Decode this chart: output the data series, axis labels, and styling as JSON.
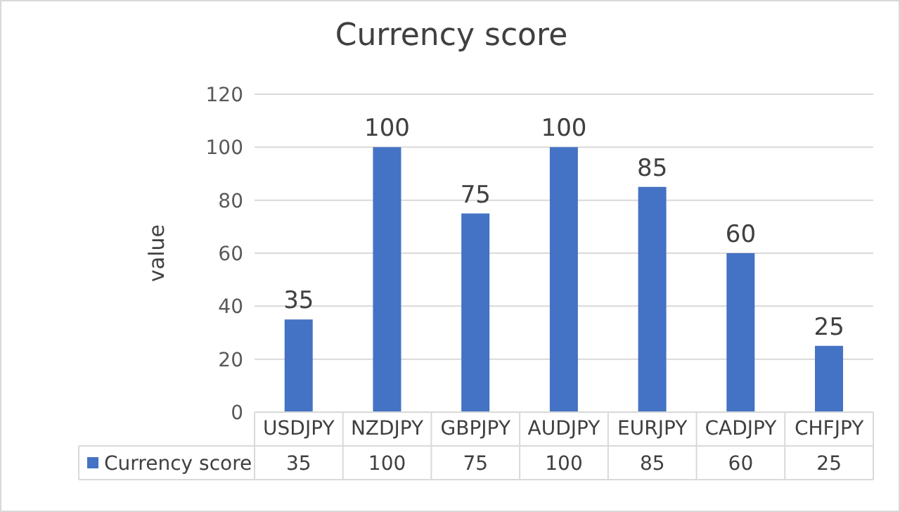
{
  "chart_data": {
    "type": "bar",
    "title": "Currency score",
    "ylabel": "value",
    "categories": [
      "USDJPY",
      "NZDJPY",
      "GBPJPY",
      "AUDJPY",
      "EURJPY",
      "CADJPY",
      "CHFJPY"
    ],
    "series": [
      {
        "name": "Currency score",
        "color": "#4472c4",
        "values": [
          35,
          100,
          75,
          100,
          85,
          60,
          25
        ],
        "value_labels": [
          "35",
          "100",
          "75",
          "100",
          "85",
          "60",
          "25"
        ]
      }
    ],
    "ylim": [
      0,
      120
    ],
    "yticks": [
      0,
      20,
      40,
      60,
      80,
      100,
      120
    ],
    "annotations": [
      {
        "text": "35",
        "x": "USDJPY",
        "y": 35
      },
      {
        "text": "100",
        "x": "NZDJPY",
        "y": 100
      },
      {
        "text": "75",
        "x": "GBPJPY",
        "y": 75
      },
      {
        "text": "100",
        "x": "AUDJPY",
        "y": 100
      },
      {
        "text": "85",
        "x": "EURJPY",
        "y": 85
      },
      {
        "text": "60",
        "x": "CADJPY",
        "y": 60
      },
      {
        "text": "25",
        "x": "CHFJPY",
        "y": 25
      }
    ],
    "grid": "y",
    "legend": "bottom"
  }
}
